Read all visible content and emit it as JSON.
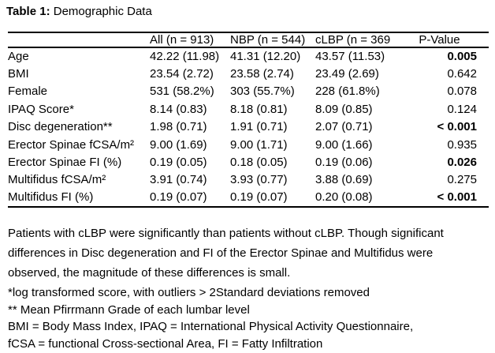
{
  "title": {
    "prefix": "Table 1:",
    "rest": " Demographic Data"
  },
  "table": {
    "columns": [
      "",
      "All (n = 913)",
      "NBP (n = 544)",
      "cLBP (n = 369)",
      "P-Value"
    ],
    "rows": [
      {
        "label": "Age",
        "all": "42.22 (11.98)",
        "nbp": "41.31 (12.20)",
        "clbp": "43.57 (11.53)",
        "p": "0.005",
        "bold": true
      },
      {
        "label": "BMI",
        "all": "23.54 (2.72)",
        "nbp": "23.58 (2.74)",
        "clbp": "23.49 (2.69)",
        "p": "0.642",
        "bold": false
      },
      {
        "label": "Female",
        "all": "531 (58.2%)",
        "nbp": "303 (55.7%)",
        "clbp": "228 (61.8%)",
        "p": "0.078",
        "bold": false
      },
      {
        "label": "IPAQ Score*",
        "all": "8.14 (0.83)",
        "nbp": "8.18 (0.81)",
        "clbp": "8.09 (0.85)",
        "p": "0.124",
        "bold": false
      },
      {
        "label": "Disc degeneration**",
        "all": "1.98 (0.71)",
        "nbp": "1.91 (0.71)",
        "clbp": "2.07 (0.71)",
        "p": "< 0.001",
        "bold": true
      },
      {
        "label": "Erector Spinae fCSA/m²",
        "all": "9.00 (1.69)",
        "nbp": "9.00 (1.71)",
        "clbp": "9.00 (1.66)",
        "p": "0.935",
        "bold": false
      },
      {
        "label": "Erector Spinae FI (%)",
        "all": "0.19 (0.05)",
        "nbp": "0.18 (0.05)",
        "clbp": "0.19 (0.06)",
        "p": "0.026",
        "bold": true
      },
      {
        "label": "Multifidus fCSA/m²",
        "all": "3.91 (0.74)",
        "nbp": "3.93 (0.77)",
        "clbp": "3.88 (0.69)",
        "p": "0.275",
        "bold": false
      },
      {
        "label": "Multifidus FI (%)",
        "all": "0.19 (0.07)",
        "nbp": "0.19 (0.07)",
        "clbp": "0.20 (0.08)",
        "p": "< 0.001",
        "bold": true
      }
    ]
  },
  "paragraph": {
    "lines": [
      "Patients with cLBP were significantly than patients without cLBP. Though significant",
      "differences in Disc degeneration and FI of the Erector Spinae and Multifidus were",
      "observed, the magnitude of these differences is small."
    ]
  },
  "footnotes": {
    "lines": [
      "*log transformed score, with outliers > 2Standard deviations removed",
      "** Mean Pfirrmann Grade of each lumbar level",
      "BMI = Body Mass Index, IPAQ = International Physical Activity Questionnaire,",
      "fCSA = functional Cross-sectional Area, FI = Fatty Infiltration"
    ]
  },
  "colors": {
    "text": "#000000",
    "background": "#ffffff",
    "rule": "#000000"
  }
}
